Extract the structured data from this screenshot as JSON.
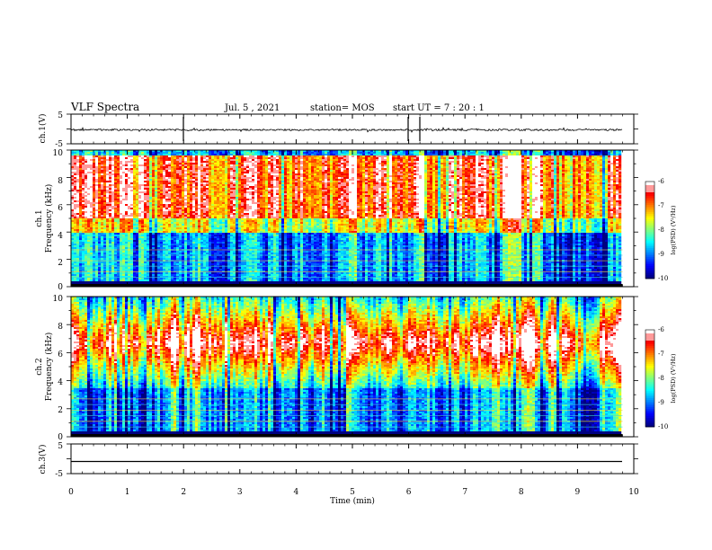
{
  "header": {
    "title": "VLF Spectra",
    "date": "Jul. 5 , 2021",
    "station": "station= MOS",
    "start": "start UT = 7 : 20 : 1"
  },
  "chart_data": [
    {
      "type": "line",
      "name": "ch1-waveform",
      "ylabel": "ch.1(V)",
      "ylim": [
        -5,
        5
      ],
      "yticks": [
        "5",
        "-5"
      ],
      "xlim": [
        0,
        10
      ],
      "data_x_range": [
        0,
        9.8
      ]
    },
    {
      "type": "heatmap",
      "name": "ch1-spectrogram",
      "ylabel": "ch.1 Frequency (kHz)",
      "ylabel_line1": "ch.1",
      "ylabel_line2": "Frequency (kHz)",
      "ylim": [
        0,
        10
      ],
      "yticks": [
        "0",
        "2",
        "4",
        "6",
        "8",
        "10"
      ],
      "xlim": [
        0,
        10
      ],
      "data_x_range": [
        0,
        9.8
      ],
      "colorbar": {
        "label": "log(PSD) (V²/Hz)",
        "range": [
          -10,
          -6
        ],
        "ticks": [
          "-6",
          "-7",
          "-8",
          "-9",
          "-10"
        ]
      }
    },
    {
      "type": "heatmap",
      "name": "ch2-spectrogram",
      "ylabel": "ch.2 Frequency (kHz)",
      "ylabel_line1": "ch.2",
      "ylabel_line2": "Frequency (kHz)",
      "ylim": [
        0,
        10
      ],
      "yticks": [
        "0",
        "2",
        "4",
        "6",
        "8",
        "10"
      ],
      "xlim": [
        0,
        10
      ],
      "data_x_range": [
        0,
        9.8
      ],
      "colorbar": {
        "label": "log(PSD) (V²/Hz)",
        "range": [
          -10,
          -6
        ],
        "ticks": [
          "-6",
          "-7",
          "-8",
          "-9",
          "-10"
        ]
      }
    },
    {
      "type": "line",
      "name": "ch3-waveform",
      "ylabel": "ch.3(V)",
      "ylim": [
        -5,
        5
      ],
      "yticks": [
        "5",
        "-5"
      ],
      "xlim": [
        0,
        10
      ],
      "data_x_range": [
        0,
        9.8
      ]
    }
  ],
  "x_axis": {
    "label": "Time (min)",
    "ticks": [
      "0",
      "1",
      "2",
      "3",
      "4",
      "5",
      "6",
      "7",
      "8",
      "9",
      "10"
    ]
  }
}
